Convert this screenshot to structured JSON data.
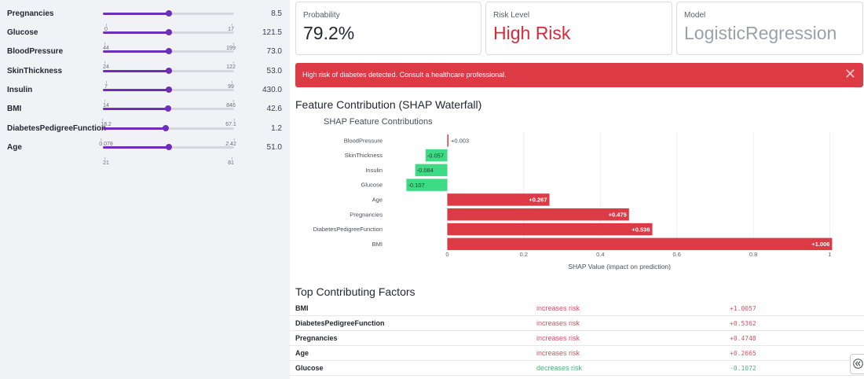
{
  "sidebar": {
    "sliders": [
      {
        "label": "Pregnancies",
        "value_text": "8.5",
        "min_text": "0",
        "max_text": "17",
        "min": 0,
        "max": 17,
        "value": 8.5
      },
      {
        "label": "Glucose",
        "value_text": "121.5",
        "min_text": "44",
        "max_text": "199",
        "min": 44,
        "max": 199,
        "value": 121.5
      },
      {
        "label": "BloodPressure",
        "value_text": "73.0",
        "min_text": "24",
        "max_text": "122",
        "min": 24,
        "max": 122,
        "value": 73.0
      },
      {
        "label": "SkinThickness",
        "value_text": "53.0",
        "min_text": "7",
        "max_text": "99",
        "min": 7,
        "max": 99,
        "value": 53.0
      },
      {
        "label": "Insulin",
        "value_text": "430.0",
        "min_text": "14",
        "max_text": "846",
        "min": 14,
        "max": 846,
        "value": 430.0
      },
      {
        "label": "BMI",
        "value_text": "42.6",
        "min_text": "18.2",
        "max_text": "67.1",
        "min": 18.2,
        "max": 67.1,
        "value": 42.6
      },
      {
        "label": "DiabetesPedigreeFunction",
        "value_text": "1.2",
        "min_text": "0.078",
        "max_text": "2.42",
        "min": 0.078,
        "max": 2.42,
        "value": 1.2
      },
      {
        "label": "Age",
        "value_text": "51.0",
        "min_text": "21",
        "max_text": "81",
        "min": 21,
        "max": 81,
        "value": 51.0
      }
    ],
    "accent_color": "#6f2dbd"
  },
  "metrics": {
    "probability": {
      "label": "Probability",
      "value": "79.2%"
    },
    "risk": {
      "label": "Risk Level",
      "value": "High Risk"
    },
    "model": {
      "label": "Model",
      "value": "LogisticRegression"
    }
  },
  "alert": {
    "text": "High risk of diabetes detected. Consult a healthcare professional.",
    "close_icon": "close-icon",
    "color": "#dc3b45"
  },
  "shap_section": {
    "title": "Feature Contribution (SHAP Waterfall)"
  },
  "chart_data": {
    "type": "bar",
    "orientation": "horizontal",
    "title": "SHAP Feature Contributions",
    "xlabel": "SHAP Value (impact on prediction)",
    "ylabel": "",
    "xlim": [
      -0.107,
      1.006
    ],
    "xticks": [
      "0",
      "0.2",
      "0.4",
      "0.6",
      "0.8",
      "1"
    ],
    "xtick_values": [
      0,
      0.2,
      0.4,
      0.6,
      0.8,
      1
    ],
    "categories": [
      "BloodPressure",
      "SkinThickness",
      "Insulin",
      "Glucose",
      "Age",
      "Pregnancies",
      "DiabetesPedigreeFunction",
      "BMI"
    ],
    "values": [
      0.003,
      -0.057,
      -0.084,
      -0.107,
      0.267,
      0.475,
      0.536,
      1.006
    ],
    "labels": [
      "+0.003",
      "-0.057",
      "-0.084",
      "-0.107",
      "+0.267",
      "+0.475",
      "+0.536",
      "+1.006"
    ],
    "positive_color": "#dc3b45",
    "negative_color": "#3ddc84",
    "grid": true
  },
  "factors_section": {
    "title": "Top Contributing Factors"
  },
  "factors": [
    {
      "feature": "BMI",
      "effect": "increases risk",
      "value": "+1.0057",
      "direction": "inc"
    },
    {
      "feature": "DiabetesPedigreeFunction",
      "effect": "increases risk",
      "value": "+0.5362",
      "direction": "inc"
    },
    {
      "feature": "Pregnancies",
      "effect": "increases risk",
      "value": "+0.4748",
      "direction": "inc"
    },
    {
      "feature": "Age",
      "effect": "increases risk",
      "value": "+0.2665",
      "direction": "inc"
    },
    {
      "feature": "Glucose",
      "effect": "decreases risk",
      "value": "-0.1072",
      "direction": "dec"
    }
  ],
  "collapse_icon": "double-chevron-left-icon"
}
